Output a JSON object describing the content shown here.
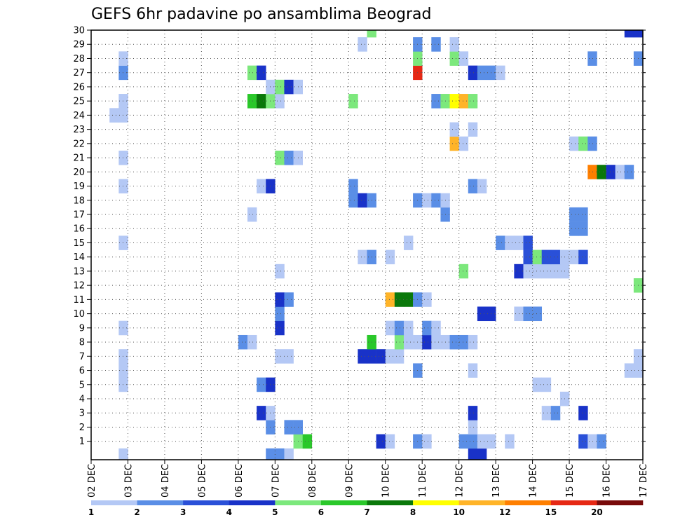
{
  "chart_data": {
    "type": "heatmap",
    "title": "GEFS 6hr padavine po ansamblima Beograd",
    "xlabel": "",
    "ylabel": "",
    "x_tick_labels": [
      "02 DEC",
      "03 DEC",
      "04 DEC",
      "05 DEC",
      "06 DEC",
      "07 DEC",
      "08 DEC",
      "09 DEC",
      "10 DEC",
      "11 DEC",
      "12 DEC",
      "13 DEC",
      "14 DEC",
      "15 DEC",
      "16 DEC",
      "17 DEC"
    ],
    "x_range_days": [
      2,
      17
    ],
    "y_tick_labels": [
      "1",
      "2",
      "3",
      "4",
      "5",
      "6",
      "7",
      "8",
      "9",
      "10",
      "11",
      "12",
      "13",
      "14",
      "15",
      "16",
      "17",
      "18",
      "19",
      "20",
      "21",
      "22",
      "23",
      "24",
      "25",
      "26",
      "27",
      "28",
      "29",
      "30"
    ],
    "y_range": [
      0,
      30
    ],
    "grid": true,
    "colorbar": {
      "placement": "bottom",
      "labels": [
        "1",
        "2",
        "3",
        "4",
        "5",
        "6",
        "7",
        "8",
        "10",
        "12",
        "15",
        "20"
      ],
      "colors": [
        "#b4c8f5",
        "#5a8ee6",
        "#2a50d8",
        "#1932c8",
        "#7ce87c",
        "#2ac82a",
        "#0a780a",
        "#ffff00",
        "#ffb428",
        "#ff7f00",
        "#e62814",
        "#780a0a"
      ]
    },
    "cell_days": 0.25,
    "cells": [
      {
        "day": 2.75,
        "member": 0,
        "cat": 0
      },
      {
        "day": 6.75,
        "member": 0,
        "cat": 1
      },
      {
        "day": 7.0,
        "member": 0,
        "cat": 1
      },
      {
        "day": 7.25,
        "member": 0,
        "cat": 0
      },
      {
        "day": 12.25,
        "member": 0,
        "cat": 3
      },
      {
        "day": 12.5,
        "member": 0,
        "cat": 3
      },
      {
        "day": 7.5,
        "member": 1,
        "cat": 4
      },
      {
        "day": 7.75,
        "member": 1,
        "cat": 5
      },
      {
        "day": 9.75,
        "member": 1,
        "cat": 3
      },
      {
        "day": 10.0,
        "member": 1,
        "cat": 0
      },
      {
        "day": 10.75,
        "member": 1,
        "cat": 1
      },
      {
        "day": 11.0,
        "member": 1,
        "cat": 0
      },
      {
        "day": 12.0,
        "member": 1,
        "cat": 1
      },
      {
        "day": 12.25,
        "member": 1,
        "cat": 1
      },
      {
        "day": 12.5,
        "member": 1,
        "cat": 0
      },
      {
        "day": 12.75,
        "member": 1,
        "cat": 0
      },
      {
        "day": 13.25,
        "member": 1,
        "cat": 0
      },
      {
        "day": 15.25,
        "member": 1,
        "cat": 2
      },
      {
        "day": 15.5,
        "member": 1,
        "cat": 0
      },
      {
        "day": 15.75,
        "member": 1,
        "cat": 1
      },
      {
        "day": 6.75,
        "member": 2,
        "cat": 1
      },
      {
        "day": 7.25,
        "member": 2,
        "cat": 1
      },
      {
        "day": 7.5,
        "member": 2,
        "cat": 1
      },
      {
        "day": 12.25,
        "member": 2,
        "cat": 0
      },
      {
        "day": 6.5,
        "member": 3,
        "cat": 3
      },
      {
        "day": 6.75,
        "member": 3,
        "cat": 0
      },
      {
        "day": 12.25,
        "member": 3,
        "cat": 3
      },
      {
        "day": 14.25,
        "member": 3,
        "cat": 0
      },
      {
        "day": 14.5,
        "member": 3,
        "cat": 1
      },
      {
        "day": 15.25,
        "member": 3,
        "cat": 3
      },
      {
        "day": 14.75,
        "member": 4,
        "cat": 0
      },
      {
        "day": 2.75,
        "member": 5,
        "cat": 0
      },
      {
        "day": 6.5,
        "member": 5,
        "cat": 1
      },
      {
        "day": 6.75,
        "member": 5,
        "cat": 3
      },
      {
        "day": 14.0,
        "member": 5,
        "cat": 0
      },
      {
        "day": 14.25,
        "member": 5,
        "cat": 0
      },
      {
        "day": 2.75,
        "member": 6,
        "cat": 0
      },
      {
        "day": 10.75,
        "member": 6,
        "cat": 1
      },
      {
        "day": 12.25,
        "member": 6,
        "cat": 0
      },
      {
        "day": 16.5,
        "member": 6,
        "cat": 0
      },
      {
        "day": 16.75,
        "member": 6,
        "cat": 0
      },
      {
        "day": 2.75,
        "member": 7,
        "cat": 0
      },
      {
        "day": 7.0,
        "member": 7,
        "cat": 0
      },
      {
        "day": 7.25,
        "member": 7,
        "cat": 0
      },
      {
        "day": 9.25,
        "member": 7,
        "cat": 3
      },
      {
        "day": 9.5,
        "member": 7,
        "cat": 3
      },
      {
        "day": 9.75,
        "member": 7,
        "cat": 3
      },
      {
        "day": 10.0,
        "member": 7,
        "cat": 0
      },
      {
        "day": 10.25,
        "member": 7,
        "cat": 0
      },
      {
        "day": 16.75,
        "member": 7,
        "cat": 0
      },
      {
        "day": 6.0,
        "member": 8,
        "cat": 1
      },
      {
        "day": 6.25,
        "member": 8,
        "cat": 0
      },
      {
        "day": 9.5,
        "member": 8,
        "cat": 5
      },
      {
        "day": 10.25,
        "member": 8,
        "cat": 4
      },
      {
        "day": 10.5,
        "member": 8,
        "cat": 0
      },
      {
        "day": 10.75,
        "member": 8,
        "cat": 0
      },
      {
        "day": 11.0,
        "member": 8,
        "cat": 3
      },
      {
        "day": 11.25,
        "member": 8,
        "cat": 0
      },
      {
        "day": 11.5,
        "member": 8,
        "cat": 0
      },
      {
        "day": 11.75,
        "member": 8,
        "cat": 1
      },
      {
        "day": 12.0,
        "member": 8,
        "cat": 1
      },
      {
        "day": 12.25,
        "member": 8,
        "cat": 0
      },
      {
        "day": 2.75,
        "member": 9,
        "cat": 0
      },
      {
        "day": 7.0,
        "member": 9,
        "cat": 3
      },
      {
        "day": 10.0,
        "member": 9,
        "cat": 0
      },
      {
        "day": 10.25,
        "member": 9,
        "cat": 1
      },
      {
        "day": 10.5,
        "member": 9,
        "cat": 0
      },
      {
        "day": 11.0,
        "member": 9,
        "cat": 1
      },
      {
        "day": 11.25,
        "member": 9,
        "cat": 0
      },
      {
        "day": 7.0,
        "member": 10,
        "cat": 1
      },
      {
        "day": 12.5,
        "member": 10,
        "cat": 3
      },
      {
        "day": 12.75,
        "member": 10,
        "cat": 3
      },
      {
        "day": 13.5,
        "member": 10,
        "cat": 0
      },
      {
        "day": 13.75,
        "member": 10,
        "cat": 1
      },
      {
        "day": 14.0,
        "member": 10,
        "cat": 1
      },
      {
        "day": 7.0,
        "member": 11,
        "cat": 3
      },
      {
        "day": 7.25,
        "member": 11,
        "cat": 1
      },
      {
        "day": 10.0,
        "member": 11,
        "cat": 8
      },
      {
        "day": 10.25,
        "member": 11,
        "cat": 6
      },
      {
        "day": 10.5,
        "member": 11,
        "cat": 6
      },
      {
        "day": 10.75,
        "member": 11,
        "cat": 1
      },
      {
        "day": 11.0,
        "member": 11,
        "cat": 0
      },
      {
        "day": 16.75,
        "member": 12,
        "cat": 4
      },
      {
        "day": 7.0,
        "member": 13,
        "cat": 0
      },
      {
        "day": 12.0,
        "member": 13,
        "cat": 4
      },
      {
        "day": 13.5,
        "member": 13,
        "cat": 3
      },
      {
        "day": 13.75,
        "member": 13,
        "cat": 0
      },
      {
        "day": 14.0,
        "member": 13,
        "cat": 0
      },
      {
        "day": 14.25,
        "member": 13,
        "cat": 0
      },
      {
        "day": 14.5,
        "member": 13,
        "cat": 0
      },
      {
        "day": 14.75,
        "member": 13,
        "cat": 0
      },
      {
        "day": 9.25,
        "member": 14,
        "cat": 0
      },
      {
        "day": 9.5,
        "member": 14,
        "cat": 1
      },
      {
        "day": 10.0,
        "member": 14,
        "cat": 0
      },
      {
        "day": 13.75,
        "member": 14,
        "cat": 2
      },
      {
        "day": 14.0,
        "member": 14,
        "cat": 4
      },
      {
        "day": 14.25,
        "member": 14,
        "cat": 2
      },
      {
        "day": 14.5,
        "member": 14,
        "cat": 2
      },
      {
        "day": 14.75,
        "member": 14,
        "cat": 0
      },
      {
        "day": 15.0,
        "member": 14,
        "cat": 0
      },
      {
        "day": 15.25,
        "member": 14,
        "cat": 2
      },
      {
        "day": 2.75,
        "member": 15,
        "cat": 0
      },
      {
        "day": 10.5,
        "member": 15,
        "cat": 0
      },
      {
        "day": 13.0,
        "member": 15,
        "cat": 1
      },
      {
        "day": 13.25,
        "member": 15,
        "cat": 0
      },
      {
        "day": 13.5,
        "member": 15,
        "cat": 0
      },
      {
        "day": 13.75,
        "member": 15,
        "cat": 2
      },
      {
        "day": 15.0,
        "member": 16,
        "cat": 1
      },
      {
        "day": 15.25,
        "member": 16,
        "cat": 1
      },
      {
        "day": 6.25,
        "member": 17,
        "cat": 0
      },
      {
        "day": 11.5,
        "member": 17,
        "cat": 1
      },
      {
        "day": 15.0,
        "member": 17,
        "cat": 1
      },
      {
        "day": 15.25,
        "member": 17,
        "cat": 1
      },
      {
        "day": 9.0,
        "member": 18,
        "cat": 1
      },
      {
        "day": 9.25,
        "member": 18,
        "cat": 3
      },
      {
        "day": 9.5,
        "member": 18,
        "cat": 1
      },
      {
        "day": 10.75,
        "member": 18,
        "cat": 1
      },
      {
        "day": 11.0,
        "member": 18,
        "cat": 0
      },
      {
        "day": 11.25,
        "member": 18,
        "cat": 1
      },
      {
        "day": 11.5,
        "member": 18,
        "cat": 0
      },
      {
        "day": 2.75,
        "member": 19,
        "cat": 0
      },
      {
        "day": 6.5,
        "member": 19,
        "cat": 0
      },
      {
        "day": 6.75,
        "member": 19,
        "cat": 3
      },
      {
        "day": 9.0,
        "member": 19,
        "cat": 1
      },
      {
        "day": 12.25,
        "member": 19,
        "cat": 1
      },
      {
        "day": 12.5,
        "member": 19,
        "cat": 0
      },
      {
        "day": 15.5,
        "member": 20,
        "cat": 9
      },
      {
        "day": 15.75,
        "member": 20,
        "cat": 6
      },
      {
        "day": 16.0,
        "member": 20,
        "cat": 3
      },
      {
        "day": 16.25,
        "member": 20,
        "cat": 0
      },
      {
        "day": 16.5,
        "member": 20,
        "cat": 1
      },
      {
        "day": 2.75,
        "member": 21,
        "cat": 0
      },
      {
        "day": 7.0,
        "member": 21,
        "cat": 4
      },
      {
        "day": 7.25,
        "member": 21,
        "cat": 1
      },
      {
        "day": 7.5,
        "member": 21,
        "cat": 0
      },
      {
        "day": 11.75,
        "member": 22,
        "cat": 8
      },
      {
        "day": 12.0,
        "member": 22,
        "cat": 0
      },
      {
        "day": 15.0,
        "member": 22,
        "cat": 0
      },
      {
        "day": 15.25,
        "member": 22,
        "cat": 4
      },
      {
        "day": 15.5,
        "member": 22,
        "cat": 1
      },
      {
        "day": 11.75,
        "member": 23,
        "cat": 0
      },
      {
        "day": 12.25,
        "member": 23,
        "cat": 0
      },
      {
        "day": 2.5,
        "member": 24,
        "cat": 0
      },
      {
        "day": 2.75,
        "member": 24,
        "cat": 0
      },
      {
        "day": 2.75,
        "member": 25,
        "cat": 0
      },
      {
        "day": 6.25,
        "member": 25,
        "cat": 5
      },
      {
        "day": 6.5,
        "member": 25,
        "cat": 6
      },
      {
        "day": 6.75,
        "member": 25,
        "cat": 4
      },
      {
        "day": 7.0,
        "member": 25,
        "cat": 0
      },
      {
        "day": 9.0,
        "member": 25,
        "cat": 4
      },
      {
        "day": 11.25,
        "member": 25,
        "cat": 1
      },
      {
        "day": 11.5,
        "member": 25,
        "cat": 4
      },
      {
        "day": 11.75,
        "member": 25,
        "cat": 7
      },
      {
        "day": 12.0,
        "member": 25,
        "cat": 8
      },
      {
        "day": 12.25,
        "member": 25,
        "cat": 4
      },
      {
        "day": 6.75,
        "member": 26,
        "cat": 0
      },
      {
        "day": 7.0,
        "member": 26,
        "cat": 4
      },
      {
        "day": 7.25,
        "member": 26,
        "cat": 3
      },
      {
        "day": 7.5,
        "member": 26,
        "cat": 0
      },
      {
        "day": 2.75,
        "member": 27,
        "cat": 1
      },
      {
        "day": 6.25,
        "member": 27,
        "cat": 4
      },
      {
        "day": 6.5,
        "member": 27,
        "cat": 3
      },
      {
        "day": 10.75,
        "member": 27,
        "cat": 10
      },
      {
        "day": 12.25,
        "member": 27,
        "cat": 3
      },
      {
        "day": 12.5,
        "member": 27,
        "cat": 1
      },
      {
        "day": 12.75,
        "member": 27,
        "cat": 1
      },
      {
        "day": 13.0,
        "member": 27,
        "cat": 0
      },
      {
        "day": 2.75,
        "member": 28,
        "cat": 0
      },
      {
        "day": 10.75,
        "member": 28,
        "cat": 4
      },
      {
        "day": 11.75,
        "member": 28,
        "cat": 4
      },
      {
        "day": 12.0,
        "member": 28,
        "cat": 0
      },
      {
        "day": 15.5,
        "member": 28,
        "cat": 1
      },
      {
        "day": 16.75,
        "member": 28,
        "cat": 1
      },
      {
        "day": 9.25,
        "member": 29,
        "cat": 0
      },
      {
        "day": 10.75,
        "member": 29,
        "cat": 1
      },
      {
        "day": 11.25,
        "member": 29,
        "cat": 1
      },
      {
        "day": 11.75,
        "member": 29,
        "cat": 0
      },
      {
        "day": 9.5,
        "member": 30,
        "cat": 4
      },
      {
        "day": 16.5,
        "member": 30,
        "cat": 3
      },
      {
        "day": 16.75,
        "member": 30,
        "cat": 3
      }
    ]
  }
}
